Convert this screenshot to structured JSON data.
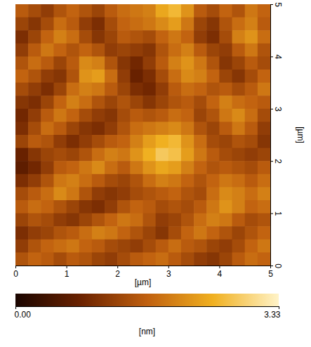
{
  "chart_data": {
    "type": "heatmap",
    "xlabel": "[µm]",
    "ylabel": "[µm]",
    "xlim": [
      0,
      5
    ],
    "xticks": [
      0,
      1,
      2,
      3,
      4,
      5
    ],
    "ylim": [
      0,
      5
    ],
    "yticks": [
      0,
      1,
      2,
      3,
      4,
      5
    ],
    "z": [
      [
        1.6,
        1.4,
        1.2,
        1.5,
        1.7,
        1.5,
        1.3,
        1.6,
        1.8,
        1.9,
        2.0,
        2.4,
        2.6,
        2.2,
        1.6,
        1.4,
        1.7,
        1.5,
        1.9,
        1.7
      ],
      [
        1.3,
        1.1,
        1.4,
        1.8,
        1.6,
        1.2,
        1.0,
        1.4,
        1.7,
        1.8,
        1.9,
        2.1,
        2.3,
        1.9,
        1.3,
        1.1,
        1.5,
        1.8,
        2.0,
        1.6
      ],
      [
        1.0,
        1.3,
        1.7,
        2.0,
        1.8,
        1.4,
        1.1,
        1.3,
        1.6,
        1.5,
        1.4,
        1.7,
        1.9,
        1.7,
        1.2,
        1.0,
        1.4,
        2.0,
        2.2,
        1.8
      ],
      [
        1.2,
        1.6,
        1.9,
        1.7,
        1.5,
        1.7,
        1.5,
        1.2,
        1.3,
        1.2,
        1.1,
        1.5,
        1.8,
        2.0,
        1.6,
        1.3,
        1.2,
        1.6,
        1.9,
        1.5
      ],
      [
        1.5,
        1.8,
        1.6,
        1.3,
        1.6,
        2.1,
        2.0,
        1.5,
        1.1,
        0.9,
        1.2,
        1.6,
        2.0,
        2.2,
        1.9,
        1.5,
        1.1,
        1.3,
        1.6,
        1.4
      ],
      [
        1.7,
        1.5,
        1.2,
        1.1,
        1.5,
        2.2,
        2.3,
        1.8,
        1.2,
        0.8,
        1.0,
        1.4,
        1.8,
        2.1,
        2.0,
        1.7,
        1.3,
        1.1,
        1.4,
        1.7
      ],
      [
        1.4,
        1.2,
        1.0,
        1.3,
        1.8,
        2.0,
        1.9,
        1.6,
        1.3,
        1.0,
        0.9,
        1.2,
        1.6,
        1.8,
        1.7,
        1.5,
        1.6,
        1.4,
        1.6,
        1.9
      ],
      [
        1.1,
        1.0,
        1.3,
        1.7,
        2.0,
        1.8,
        1.5,
        1.3,
        1.5,
        1.3,
        1.1,
        1.3,
        1.5,
        1.6,
        1.4,
        1.7,
        2.0,
        1.8,
        1.7,
        1.6
      ],
      [
        0.9,
        1.2,
        1.6,
        1.9,
        1.7,
        1.4,
        1.2,
        1.1,
        1.4,
        1.6,
        1.5,
        1.6,
        1.8,
        1.7,
        1.3,
        1.5,
        1.9,
        2.1,
        1.8,
        1.4
      ],
      [
        1.0,
        1.4,
        1.8,
        1.6,
        1.3,
        1.1,
        1.0,
        1.2,
        1.5,
        1.8,
        1.9,
        2.0,
        2.1,
        1.9,
        1.5,
        1.3,
        1.6,
        1.9,
        1.6,
        1.2
      ],
      [
        1.3,
        1.6,
        1.5,
        1.2,
        1.0,
        1.2,
        1.4,
        1.6,
        1.7,
        2.0,
        2.3,
        2.5,
        2.6,
        2.2,
        1.8,
        1.4,
        1.3,
        1.5,
        1.4,
        1.1
      ],
      [
        0.8,
        1.1,
        1.3,
        1.4,
        1.3,
        1.5,
        1.8,
        2.0,
        1.9,
        2.2,
        2.5,
        2.8,
        2.7,
        2.3,
        1.9,
        1.6,
        1.4,
        1.3,
        1.2,
        1.3
      ],
      [
        0.7,
        0.9,
        1.2,
        1.6,
        1.7,
        1.9,
        2.1,
        1.8,
        1.6,
        1.9,
        2.2,
        2.4,
        2.3,
        2.0,
        1.7,
        1.5,
        1.6,
        1.5,
        1.4,
        1.6
      ],
      [
        1.0,
        1.2,
        1.5,
        1.9,
        2.0,
        1.8,
        1.6,
        1.4,
        1.3,
        1.5,
        1.8,
        2.0,
        1.9,
        1.7,
        1.5,
        1.7,
        1.9,
        1.8,
        1.6,
        1.8
      ],
      [
        1.4,
        1.6,
        1.8,
        2.1,
        1.9,
        1.5,
        1.2,
        1.1,
        1.2,
        1.4,
        1.5,
        1.6,
        1.7,
        1.5,
        1.4,
        1.8,
        2.1,
        2.0,
        1.8,
        2.0
      ],
      [
        1.6,
        1.8,
        1.7,
        1.5,
        1.3,
        1.1,
        1.0,
        1.2,
        1.5,
        1.7,
        1.6,
        1.4,
        1.5,
        1.4,
        1.6,
        1.9,
        2.2,
        2.0,
        1.7,
        1.8
      ],
      [
        1.3,
        1.5,
        1.4,
        1.2,
        1.1,
        1.3,
        1.5,
        1.7,
        1.9,
        1.8,
        1.5,
        1.2,
        1.3,
        1.5,
        1.8,
        2.0,
        1.9,
        1.6,
        1.4,
        1.5
      ],
      [
        1.0,
        1.2,
        1.3,
        1.5,
        1.6,
        1.8,
        2.0,
        1.9,
        1.7,
        1.5,
        1.3,
        1.1,
        1.4,
        1.7,
        1.9,
        1.7,
        1.5,
        1.3,
        1.5,
        1.7
      ],
      [
        1.2,
        1.5,
        1.7,
        1.8,
        1.9,
        1.7,
        1.6,
        1.4,
        1.3,
        1.2,
        1.4,
        1.6,
        1.8,
        1.6,
        1.5,
        1.3,
        1.2,
        1.4,
        1.7,
        1.9
      ],
      [
        1.5,
        1.7,
        1.6,
        1.4,
        1.6,
        1.5,
        1.3,
        1.2,
        1.4,
        1.6,
        1.7,
        1.8,
        1.6,
        1.4,
        1.2,
        1.1,
        1.3,
        1.6,
        1.8,
        1.7
      ]
    ],
    "colorbar_range": [
      0,
      3.33
    ],
    "colorbar_ticks": [
      {
        "value": 0,
        "label": "0.00"
      },
      {
        "value": 3.33,
        "label": "3.33"
      }
    ],
    "colorbar_label": "[nm]"
  }
}
